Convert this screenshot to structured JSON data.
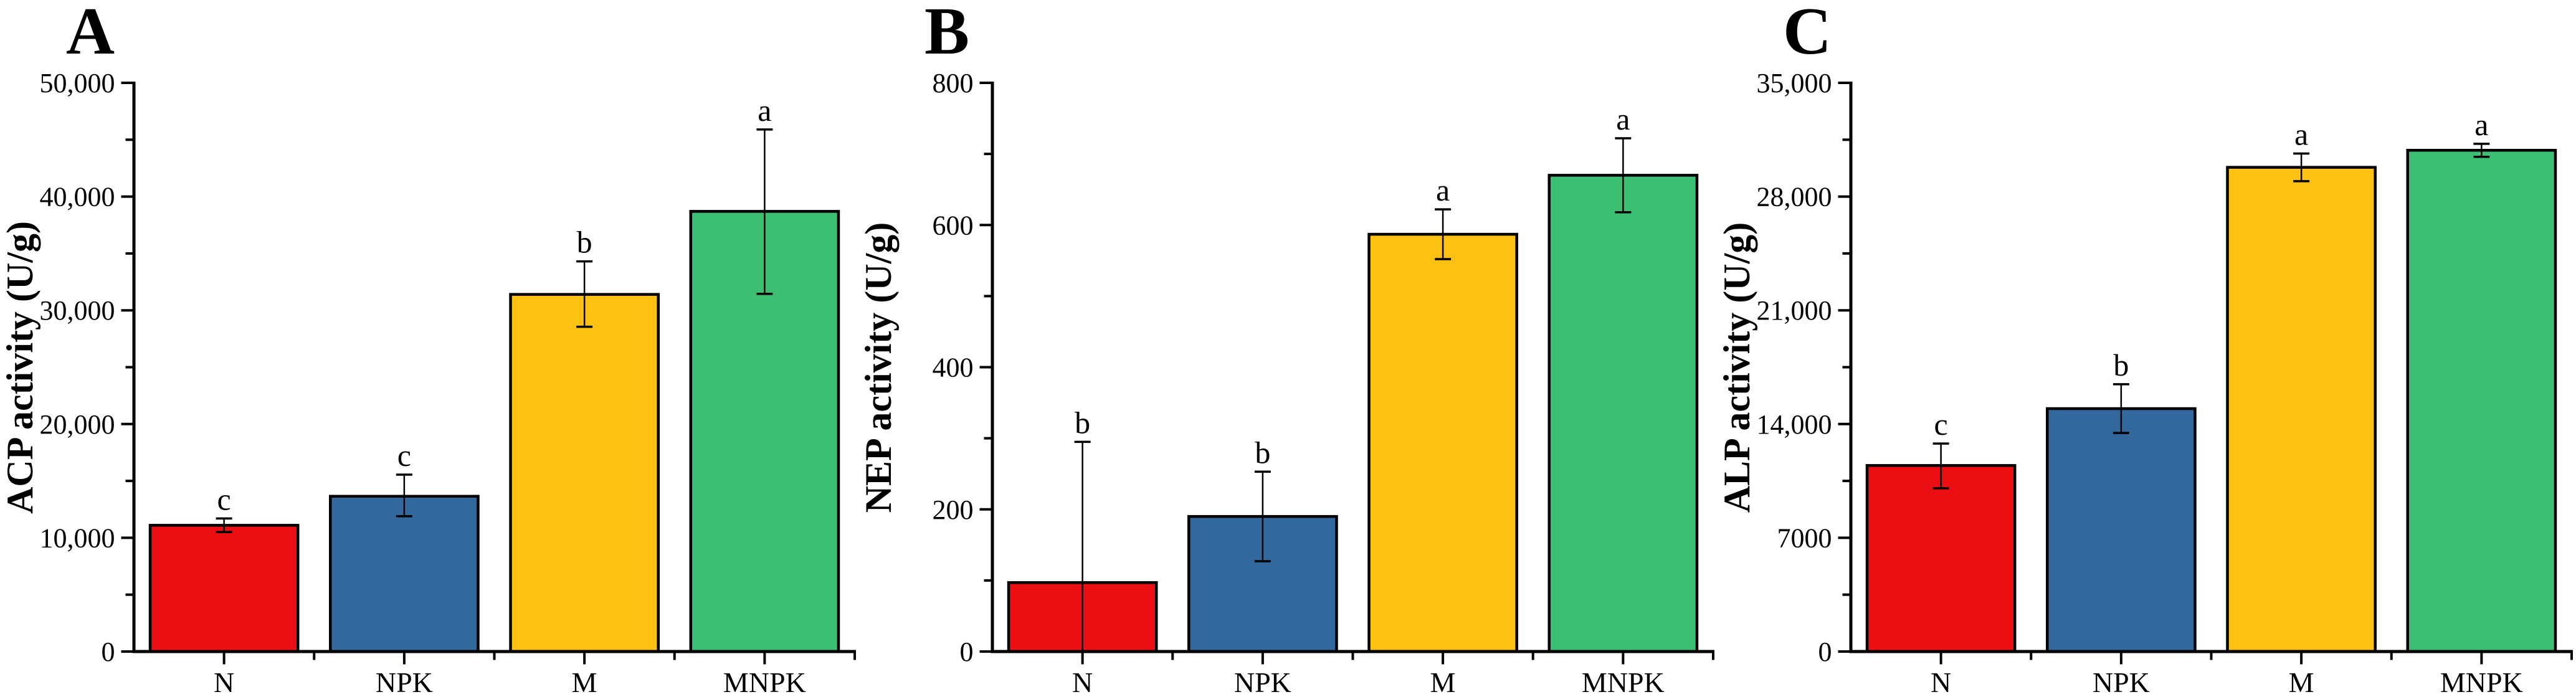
{
  "figure": {
    "background": "#ffffff",
    "bar_outline": "#000000",
    "axis_color": "#000000",
    "bar_colors": [
      "#EB0F13",
      "#33689C",
      "#FDC111",
      "#3CBF72"
    ]
  },
  "chart_data": [
    {
      "type": "bar",
      "panel_label": "A",
      "title": "",
      "xlabel": "",
      "ylabel": "ACP activity (U/g)",
      "categories": [
        "N",
        "NPK",
        "M",
        "MNPK"
      ],
      "values": [
        11100,
        13650,
        31400,
        38700
      ],
      "error_low": [
        10500,
        11900,
        28550,
        31450
      ],
      "error_high": [
        11700,
        15550,
        34300,
        45900
      ],
      "sig_letters": [
        "c",
        "c",
        "b",
        "a"
      ],
      "ylim": [
        0,
        50000
      ],
      "ytick_step": 10000,
      "yminor_step": 5000,
      "ytick_labels": [
        "0",
        "10,000",
        "20,000",
        "30,000",
        "40,000",
        "50,000"
      ],
      "grid": "off",
      "legend": "none",
      "bar_colors": [
        "#EB0F13",
        "#33689C",
        "#FDC111",
        "#3CBF72"
      ]
    },
    {
      "type": "bar",
      "panel_label": "B",
      "title": "",
      "xlabel": "",
      "ylabel": "NEP activity (U/g)",
      "categories": [
        "N",
        "NPK",
        "M",
        "MNPK"
      ],
      "values": [
        97,
        190,
        587,
        670
      ],
      "error_low": [
        0,
        127,
        552,
        618
      ],
      "error_high": [
        295,
        253,
        622,
        722
      ],
      "sig_letters": [
        "b",
        "b",
        "a",
        "a"
      ],
      "ylim": [
        0,
        800
      ],
      "ytick_step": 200,
      "yminor_step": 100,
      "ytick_labels": [
        "0",
        "200",
        "400",
        "600",
        "800"
      ],
      "grid": "off",
      "legend": "none",
      "bar_colors": [
        "#EB0F13",
        "#33689C",
        "#FDC111",
        "#3CBF72"
      ]
    },
    {
      "type": "bar",
      "panel_label": "C",
      "title": "",
      "xlabel": "",
      "ylabel": "ALP activity (U/g)",
      "categories": [
        "N",
        "NPK",
        "M",
        "MNPK"
      ],
      "values": [
        11450,
        14950,
        29800,
        30850
      ],
      "error_low": [
        10050,
        13450,
        28950,
        30450
      ],
      "error_high": [
        12800,
        16450,
        30650,
        31250
      ],
      "sig_letters": [
        "c",
        "b",
        "a",
        "a"
      ],
      "ylim": [
        0,
        35000
      ],
      "ytick_step": 7000,
      "yminor_step": 3500,
      "ytick_labels": [
        "0",
        "7000",
        "14,000",
        "21,000",
        "28,000",
        "35,000"
      ],
      "grid": "off",
      "legend": "none",
      "bar_colors": [
        "#EB0F13",
        "#33689C",
        "#FDC111",
        "#3CBF72"
      ]
    }
  ]
}
